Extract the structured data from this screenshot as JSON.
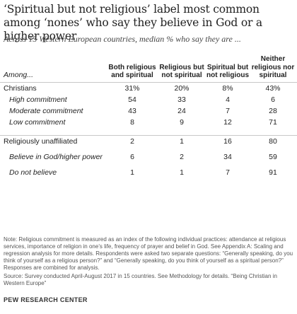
{
  "title": "‘Spiritual but not religious’ label most common among ‘nones’ who say they believe in God or a higher power",
  "subtitle": "Across 15 Western European countries, median % who say they are ...",
  "chart_data": {
    "type": "table",
    "row_header": "Among...",
    "columns": [
      "Both religious and spiritual",
      "Religious but not spiritual",
      "Spiritual but not religious",
      "Neither religious nor spiritual"
    ],
    "rows": [
      {
        "label": "Christians",
        "values": [
          "31%",
          "20%",
          "8%",
          "43%"
        ],
        "level": 0
      },
      {
        "label": "High commitment",
        "values": [
          "54",
          "33",
          "4",
          "6"
        ],
        "level": 1
      },
      {
        "label": "Moderate commitment",
        "values": [
          "43",
          "24",
          "7",
          "28"
        ],
        "level": 1
      },
      {
        "label": "Low commitment",
        "values": [
          "8",
          "9",
          "12",
          "71"
        ],
        "level": 1
      },
      {
        "label": "Religiously unaffiliated",
        "values": [
          "2",
          "1",
          "16",
          "80"
        ],
        "level": 0
      },
      {
        "label": "Believe in God/higher power",
        "values": [
          "6",
          "2",
          "34",
          "59"
        ],
        "level": 1
      },
      {
        "label": "Do not believe",
        "values": [
          "1",
          "1",
          "7",
          "91"
        ],
        "level": 1
      }
    ]
  },
  "note": "Note: Religious commitment is measured as an index of the following individual practices: attendance at religious services, importance of religion in one’s life, frequency of prayer and belief in God. See Appendix A: Scaling and regression analysis for more details. Respondents were asked two separate questions: “Generally speaking, do you think of yourself as a religious person?” and “Generally speaking, do you think of yourself as a spiritual person?” Responses are combined for analysis.",
  "source": "Source: Survey conducted April-August 2017 in 15 countries. See Methodology for details. “Being Christian in Western Europe”",
  "logo": "PEW RESEARCH CENTER"
}
